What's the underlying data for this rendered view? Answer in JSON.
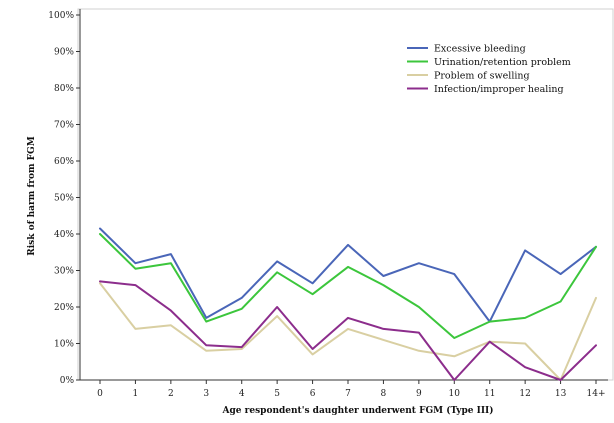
{
  "chart_data": {
    "type": "line",
    "title": "",
    "xlabel": "Age respondent's daughter underwent FGM (Type III)",
    "ylabel": "Risk of harm from FGM",
    "categories": [
      "0",
      "1",
      "2",
      "3",
      "4",
      "5",
      "6",
      "7",
      "8",
      "9",
      "10",
      "11",
      "12",
      "13",
      "14+"
    ],
    "y_ticks": [
      "0%",
      "10%",
      "20%",
      "30%",
      "40%",
      "50%",
      "60%",
      "70%",
      "80%",
      "90%",
      "100%"
    ],
    "ylim": [
      0,
      100
    ],
    "grid": false,
    "legend_position": "top-right",
    "series": [
      {
        "name": "Excessive bleeding",
        "color": "#4a66b8",
        "values": [
          41.5,
          32,
          34.5,
          17,
          22.5,
          32.5,
          26.5,
          37,
          28.5,
          32,
          29,
          16,
          35.5,
          29,
          36.5
        ]
      },
      {
        "name": "Urination/retention problem",
        "color": "#3cc63c",
        "values": [
          40,
          30.5,
          32,
          16,
          19.5,
          29.5,
          23.5,
          31,
          26,
          20,
          11.5,
          16,
          17,
          21.5,
          36.5
        ]
      },
      {
        "name": "Problem of swelling",
        "color": "#d9cfa2",
        "values": [
          26.5,
          14,
          15,
          8,
          8.5,
          17.5,
          7,
          14,
          11,
          8,
          6.5,
          10.5,
          10,
          0,
          22.5
        ]
      },
      {
        "name": "Infection/improper healing",
        "color": "#8c2d8c",
        "values": [
          27,
          26,
          19,
          9.5,
          9,
          20,
          8.5,
          17,
          14,
          13,
          0,
          10.5,
          3.5,
          0,
          9.5
        ]
      }
    ]
  }
}
